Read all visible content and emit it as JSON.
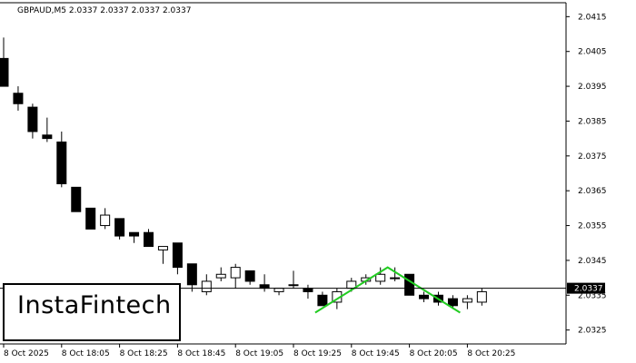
{
  "header": {
    "symbol_text": "GBPAUD,M5  2.0337 2.0337 2.0337 2.0337"
  },
  "logo": {
    "text": "InstaFintech"
  },
  "current_price_label": "2.0337",
  "colors": {
    "bull_fill": "#ffffff",
    "bear_fill": "#000000",
    "pattern_line": "#22cc22",
    "axis": "#000000"
  },
  "chart_data": {
    "type": "candlestick",
    "symbol": "GBPAUD",
    "timeframe": "M5",
    "ylim": [
      2.0321,
      2.0419
    ],
    "yticks": [
      "2.0415",
      "2.0405",
      "2.0395",
      "2.0385",
      "2.0375",
      "2.0365",
      "2.0355",
      "2.0345",
      "2.0335",
      "2.0325"
    ],
    "xticks": [
      "8 Oct 2025",
      "8 Oct 18:05",
      "8 Oct 18:25",
      "8 Oct 18:45",
      "8 Oct 19:05",
      "8 Oct 19:25",
      "8 Oct 19:45",
      "8 Oct 20:05",
      "8 Oct 20:25"
    ],
    "current_price": 2.0337,
    "candles": [
      {
        "o": 2.0403,
        "h": 2.0409,
        "l": 2.0395,
        "c": 2.0395
      },
      {
        "o": 2.0393,
        "h": 2.0395,
        "l": 2.0388,
        "c": 2.039
      },
      {
        "o": 2.0389,
        "h": 2.039,
        "l": 2.038,
        "c": 2.0382
      },
      {
        "o": 2.0381,
        "h": 2.0386,
        "l": 2.0379,
        "c": 2.038
      },
      {
        "o": 2.0379,
        "h": 2.0382,
        "l": 2.0366,
        "c": 2.0367
      },
      {
        "o": 2.0366,
        "h": 2.0366,
        "l": 2.0359,
        "c": 2.0359
      },
      {
        "o": 2.036,
        "h": 2.036,
        "l": 2.0354,
        "c": 2.0354
      },
      {
        "o": 2.0355,
        "h": 2.036,
        "l": 2.0354,
        "c": 2.0358
      },
      {
        "o": 2.0357,
        "h": 2.0357,
        "l": 2.0351,
        "c": 2.0352
      },
      {
        "o": 2.0353,
        "h": 2.0353,
        "l": 2.035,
        "c": 2.0352
      },
      {
        "o": 2.0353,
        "h": 2.0354,
        "l": 2.0349,
        "c": 2.0349
      },
      {
        "o": 2.0348,
        "h": 2.0349,
        "l": 2.0344,
        "c": 2.0349
      },
      {
        "o": 2.035,
        "h": 2.035,
        "l": 2.0341,
        "c": 2.0343
      },
      {
        "o": 2.0344,
        "h": 2.0344,
        "l": 2.0336,
        "c": 2.0338
      },
      {
        "o": 2.0336,
        "h": 2.0341,
        "l": 2.0335,
        "c": 2.0339
      },
      {
        "o": 2.034,
        "h": 2.0343,
        "l": 2.0339,
        "c": 2.0341
      },
      {
        "o": 2.034,
        "h": 2.0344,
        "l": 2.0337,
        "c": 2.0343
      },
      {
        "o": 2.0342,
        "h": 2.0342,
        "l": 2.0338,
        "c": 2.0339
      },
      {
        "o": 2.0338,
        "h": 2.0341,
        "l": 2.0336,
        "c": 2.0337
      },
      {
        "o": 2.0336,
        "h": 2.0337,
        "l": 2.0335,
        "c": 2.0337
      },
      {
        "o": 2.0338,
        "h": 2.0342,
        "l": 2.0337,
        "c": 2.0338
      },
      {
        "o": 2.0337,
        "h": 2.0338,
        "l": 2.0334,
        "c": 2.0336
      },
      {
        "o": 2.0335,
        "h": 2.0336,
        "l": 2.0332,
        "c": 2.0332
      },
      {
        "o": 2.0333,
        "h": 2.0337,
        "l": 2.0331,
        "c": 2.0336
      },
      {
        "o": 2.0337,
        "h": 2.034,
        "l": 2.0336,
        "c": 2.0339
      },
      {
        "o": 2.0339,
        "h": 2.0341,
        "l": 2.0338,
        "c": 2.034
      },
      {
        "o": 2.0339,
        "h": 2.0343,
        "l": 2.0338,
        "c": 2.0341
      },
      {
        "o": 2.034,
        "h": 2.0343,
        "l": 2.0339,
        "c": 2.034
      },
      {
        "o": 2.0341,
        "h": 2.0341,
        "l": 2.0335,
        "c": 2.0335
      },
      {
        "o": 2.0335,
        "h": 2.0336,
        "l": 2.0333,
        "c": 2.0334
      },
      {
        "o": 2.0335,
        "h": 2.0336,
        "l": 2.0332,
        "c": 2.0333
      },
      {
        "o": 2.0334,
        "h": 2.0335,
        "l": 2.0331,
        "c": 2.0332
      },
      {
        "o": 2.0333,
        "h": 2.0335,
        "l": 2.0331,
        "c": 2.0334
      },
      {
        "o": 2.0333,
        "h": 2.0337,
        "l": 2.0332,
        "c": 2.0336
      }
    ],
    "pattern_line": [
      {
        "i": 21.5,
        "p": 2.033
      },
      {
        "i": 26.5,
        "p": 2.0343
      },
      {
        "i": 31.5,
        "p": 2.033
      }
    ]
  }
}
